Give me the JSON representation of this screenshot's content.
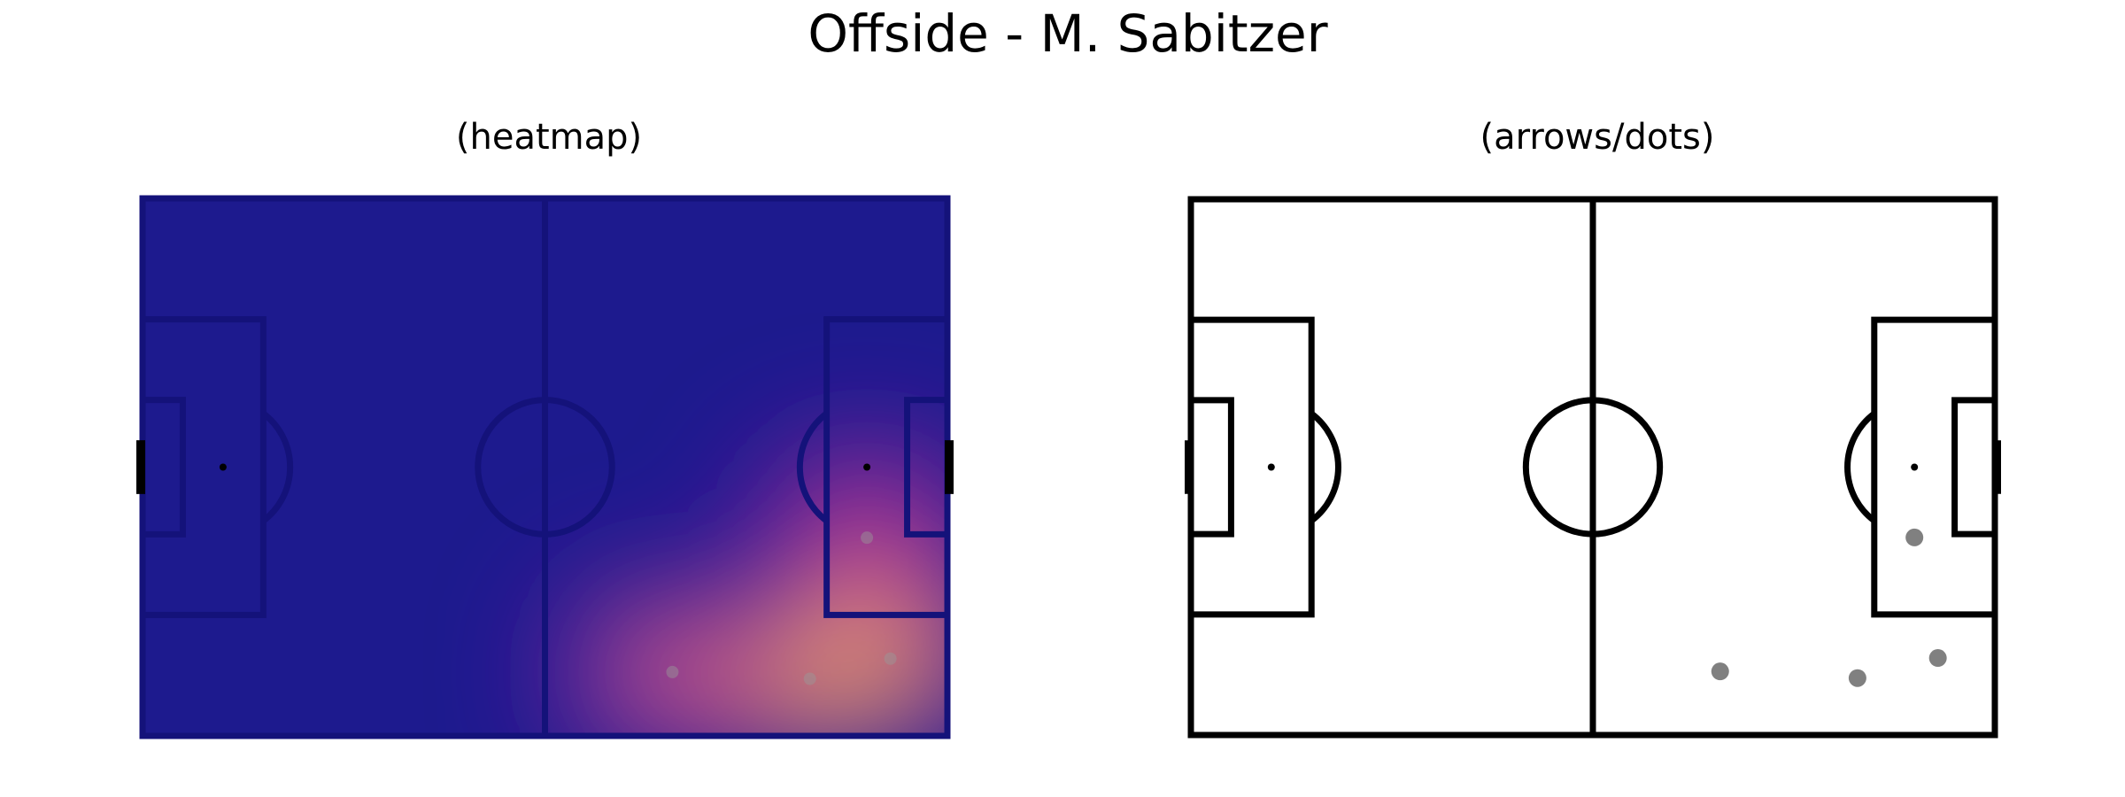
{
  "title": "Offside - M. Sabitzer",
  "chart_data": [
    {
      "type": "heatmap",
      "subtitle": "(heatmap)",
      "pitch": {
        "length": 120,
        "width": 80
      },
      "xlim": [
        0,
        120
      ],
      "ylim": [
        0,
        80
      ],
      "colormap": "plasma",
      "points": [
        {
          "x": 79,
          "y": 70.5
        },
        {
          "x": 99.5,
          "y": 71.5
        },
        {
          "x": 111.5,
          "y": 68.5
        },
        {
          "x": 108,
          "y": 50.5
        }
      ]
    },
    {
      "type": "scatter",
      "subtitle": "(arrows/dots)",
      "pitch": {
        "length": 120,
        "width": 80
      },
      "xlim": [
        0,
        120
      ],
      "ylim": [
        0,
        80
      ],
      "marker_color": "#808080",
      "points": [
        {
          "x": 79,
          "y": 70.5
        },
        {
          "x": 99.5,
          "y": 71.5
        },
        {
          "x": 111.5,
          "y": 68.5
        },
        {
          "x": 108,
          "y": 50.5
        }
      ]
    }
  ]
}
